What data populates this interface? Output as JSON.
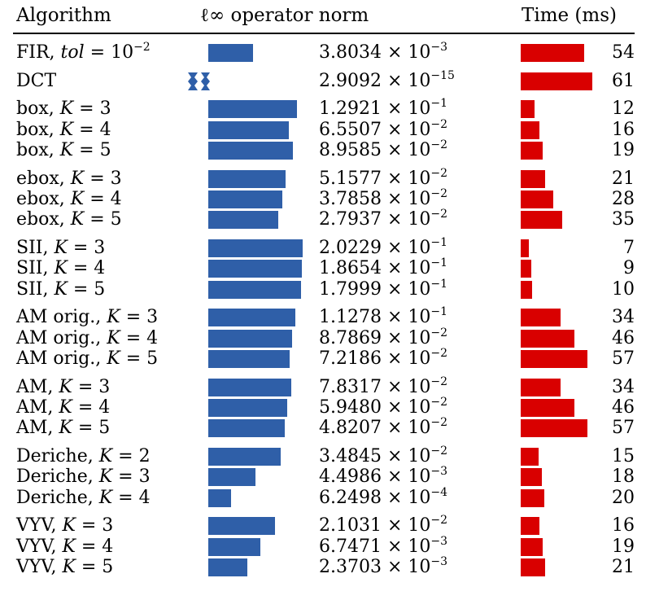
{
  "headers": {
    "algorithm": "Algorithm",
    "norm": "ℓ∞ operator norm",
    "time": "Time (ms)"
  },
  "colors": {
    "norm_bar": "#2f5fa8",
    "time_bar": "#d90000"
  },
  "chart_data": {
    "type": "bar",
    "title": "",
    "columns": [
      "Algorithm",
      "ℓ∞ operator norm",
      "Time (ms)"
    ],
    "rows": [
      {
        "algorithm": "FIR, tol = 10^-2",
        "name": "FIR",
        "param": "tol",
        "pval": "10",
        "pexp": "−2",
        "mant": "3.8034",
        "exp": "−3",
        "norm": 0.0038034,
        "time": 54,
        "group": 0
      },
      {
        "algorithm": "DCT",
        "name": "DCT",
        "param": "",
        "pval": "",
        "pexp": "",
        "mant": "2.9092",
        "exp": "−15",
        "norm": 2.9092e-15,
        "time": 61,
        "group": 1
      },
      {
        "algorithm": "box, K = 3",
        "name": "box",
        "param": "K",
        "pval": "3",
        "pexp": "",
        "mant": "1.2921",
        "exp": "−1",
        "norm": 0.12921,
        "time": 12,
        "group": 2
      },
      {
        "algorithm": "box, K = 4",
        "name": "box",
        "param": "K",
        "pval": "4",
        "pexp": "",
        "mant": "6.5507",
        "exp": "−2",
        "norm": 0.065507,
        "time": 16,
        "group": 2
      },
      {
        "algorithm": "box, K = 5",
        "name": "box",
        "param": "K",
        "pval": "5",
        "pexp": "",
        "mant": "8.9585",
        "exp": "−2",
        "norm": 0.089585,
        "time": 19,
        "group": 2
      },
      {
        "algorithm": "ebox, K = 3",
        "name": "ebox",
        "param": "K",
        "pval": "3",
        "pexp": "",
        "mant": "5.1577",
        "exp": "−2",
        "norm": 0.051577,
        "time": 21,
        "group": 3
      },
      {
        "algorithm": "ebox, K = 4",
        "name": "ebox",
        "param": "K",
        "pval": "4",
        "pexp": "",
        "mant": "3.7858",
        "exp": "−2",
        "norm": 0.037858,
        "time": 28,
        "group": 3
      },
      {
        "algorithm": "ebox, K = 5",
        "name": "ebox",
        "param": "K",
        "pval": "5",
        "pexp": "",
        "mant": "2.7937",
        "exp": "−2",
        "norm": 0.027937,
        "time": 35,
        "group": 3
      },
      {
        "algorithm": "SII, K = 3",
        "name": "SII",
        "param": "K",
        "pval": "3",
        "pexp": "",
        "mant": "2.0229",
        "exp": "−1",
        "norm": 0.20229,
        "time": 7,
        "group": 4
      },
      {
        "algorithm": "SII, K = 4",
        "name": "SII",
        "param": "K",
        "pval": "4",
        "pexp": "",
        "mant": "1.8654",
        "exp": "−1",
        "norm": 0.18654,
        "time": 9,
        "group": 4
      },
      {
        "algorithm": "SII, K = 5",
        "name": "SII",
        "param": "K",
        "pval": "5",
        "pexp": "",
        "mant": "1.7999",
        "exp": "−1",
        "norm": 0.17999,
        "time": 10,
        "group": 4
      },
      {
        "algorithm": "AM orig., K = 3",
        "name": "AM orig.",
        "param": "K",
        "pval": "3",
        "pexp": "",
        "mant": "1.1278",
        "exp": "−1",
        "norm": 0.11278,
        "time": 34,
        "group": 5
      },
      {
        "algorithm": "AM orig., K = 4",
        "name": "AM orig.",
        "param": "K",
        "pval": "4",
        "pexp": "",
        "mant": "8.7869",
        "exp": "−2",
        "norm": 0.087869,
        "time": 46,
        "group": 5
      },
      {
        "algorithm": "AM orig., K = 5",
        "name": "AM orig.",
        "param": "K",
        "pval": "5",
        "pexp": "",
        "mant": "7.2186",
        "exp": "−2",
        "norm": 0.072186,
        "time": 57,
        "group": 5
      },
      {
        "algorithm": "AM, K = 3",
        "name": "AM",
        "param": "K",
        "pval": "3",
        "pexp": "",
        "mant": "7.8317",
        "exp": "−2",
        "norm": 0.078317,
        "time": 34,
        "group": 6
      },
      {
        "algorithm": "AM, K = 4",
        "name": "AM",
        "param": "K",
        "pval": "4",
        "pexp": "",
        "mant": "5.9480",
        "exp": "−2",
        "norm": 0.05948,
        "time": 46,
        "group": 6
      },
      {
        "algorithm": "AM, K = 5",
        "name": "AM",
        "param": "K",
        "pval": "5",
        "pexp": "",
        "mant": "4.8207",
        "exp": "−2",
        "norm": 0.048207,
        "time": 57,
        "group": 6
      },
      {
        "algorithm": "Deriche, K = 2",
        "name": "Deriche",
        "param": "K",
        "pval": "2",
        "pexp": "",
        "mant": "3.4845",
        "exp": "−2",
        "norm": 0.034845,
        "time": 15,
        "group": 7
      },
      {
        "algorithm": "Deriche, K = 3",
        "name": "Deriche",
        "param": "K",
        "pval": "3",
        "pexp": "",
        "mant": "4.4986",
        "exp": "−3",
        "norm": 0.0044986,
        "time": 18,
        "group": 7
      },
      {
        "algorithm": "Deriche, K = 4",
        "name": "Deriche",
        "param": "K",
        "pval": "4",
        "pexp": "",
        "mant": "6.2498",
        "exp": "−4",
        "norm": 0.00062498,
        "time": 20,
        "group": 7
      },
      {
        "algorithm": "VYV, K = 3",
        "name": "VYV",
        "param": "K",
        "pval": "3",
        "pexp": "",
        "mant": "2.1031",
        "exp": "−2",
        "norm": 0.021031,
        "time": 16,
        "group": 8
      },
      {
        "algorithm": "VYV, K = 4",
        "name": "VYV",
        "param": "K",
        "pval": "4",
        "pexp": "",
        "mant": "6.7471",
        "exp": "−3",
        "norm": 0.0067471,
        "time": 19,
        "group": 8
      },
      {
        "algorithm": "VYV, K = 5",
        "name": "VYV",
        "param": "K",
        "pval": "5",
        "pexp": "",
        "mant": "2.3703",
        "exp": "−3",
        "norm": 0.0023703,
        "time": 21,
        "group": 8
      }
    ],
    "norm_axis": {
      "scale": "log",
      "range": [
        0.0001,
        0.1
      ]
    },
    "time_axis": {
      "scale": "linear",
      "range": [
        0,
        61
      ]
    }
  }
}
